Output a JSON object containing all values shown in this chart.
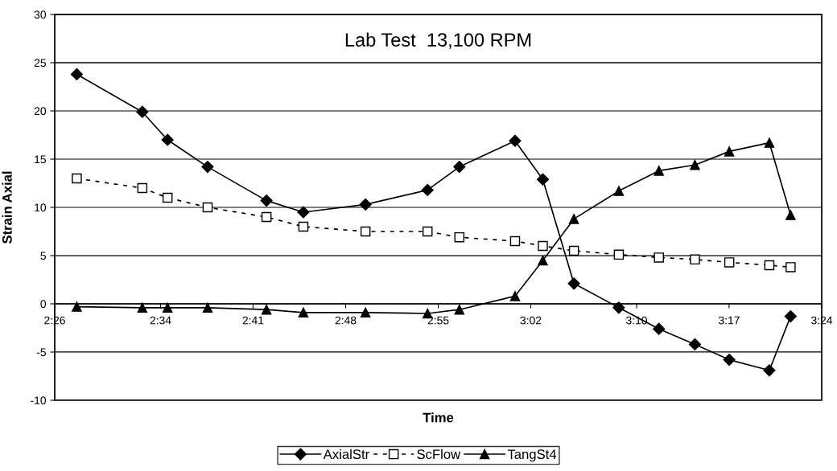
{
  "chart_data": {
    "type": "line",
    "title": "Lab Test  13,100 RPM",
    "xlabel": "Time",
    "ylabel": "Strain Axial",
    "x": [
      2.4611,
      2.5437,
      2.5755,
      2.626,
      2.7002,
      2.7467,
      2.825,
      2.9032,
      2.9433,
      3.0135,
      3.0485,
      3.0877,
      3.1443,
      3.1948,
      3.2402,
      3.2835,
      3.334,
      3.3608
    ],
    "series": [
      {
        "name": "AxialStr",
        "color": "#000000",
        "marker": "diamond",
        "line_style": "solid",
        "values": [
          23.8,
          19.9,
          17,
          14.2,
          10.7,
          9.5,
          10.3,
          11.8,
          14.2,
          16.9,
          12.9,
          2.1,
          -0.4,
          -2.6,
          -4.2,
          -5.8,
          -6.9,
          -1.3
        ]
      },
      {
        "name": "ScFlow",
        "color": "#000000",
        "marker": "square",
        "line_style": "dashed",
        "values": [
          13,
          12,
          11,
          10,
          9,
          8,
          7.5,
          7.5,
          6.9,
          6.5,
          6,
          5.5,
          5.1,
          4.8,
          4.6,
          4.3,
          4.0,
          3.8
        ]
      },
      {
        "name": "TangSt4",
        "color": "#000000",
        "marker": "triangle",
        "line_style": "solid",
        "values": [
          -0.3,
          -0.4,
          -0.4,
          -0.4,
          -0.6,
          -0.9,
          -0.9,
          -1.0,
          -0.6,
          0.8,
          4.5,
          8.8,
          11.7,
          13.8,
          14.4,
          15.8,
          16.7,
          9.2
        ]
      }
    ],
    "xlim": [
      2.4333,
      3.4
    ],
    "xticks": [
      {
        "value": 2.4333,
        "label": "2:26"
      },
      {
        "value": 2.5667,
        "label": "2:34"
      },
      {
        "value": 2.6833,
        "label": "2:41"
      },
      {
        "value": 2.8,
        "label": "2:48"
      },
      {
        "value": 2.9167,
        "label": "2:55"
      },
      {
        "value": 3.0333,
        "label": "3:02"
      },
      {
        "value": 3.1667,
        "label": "3:10"
      },
      {
        "value": 3.2833,
        "label": "3:17"
      },
      {
        "value": 3.4,
        "label": "3:24"
      }
    ],
    "ylim": [
      -10,
      30
    ],
    "yticks": [
      -10,
      -5,
      0,
      5,
      10,
      15,
      20,
      25,
      30
    ],
    "grid": "y",
    "legend": "bottom"
  }
}
